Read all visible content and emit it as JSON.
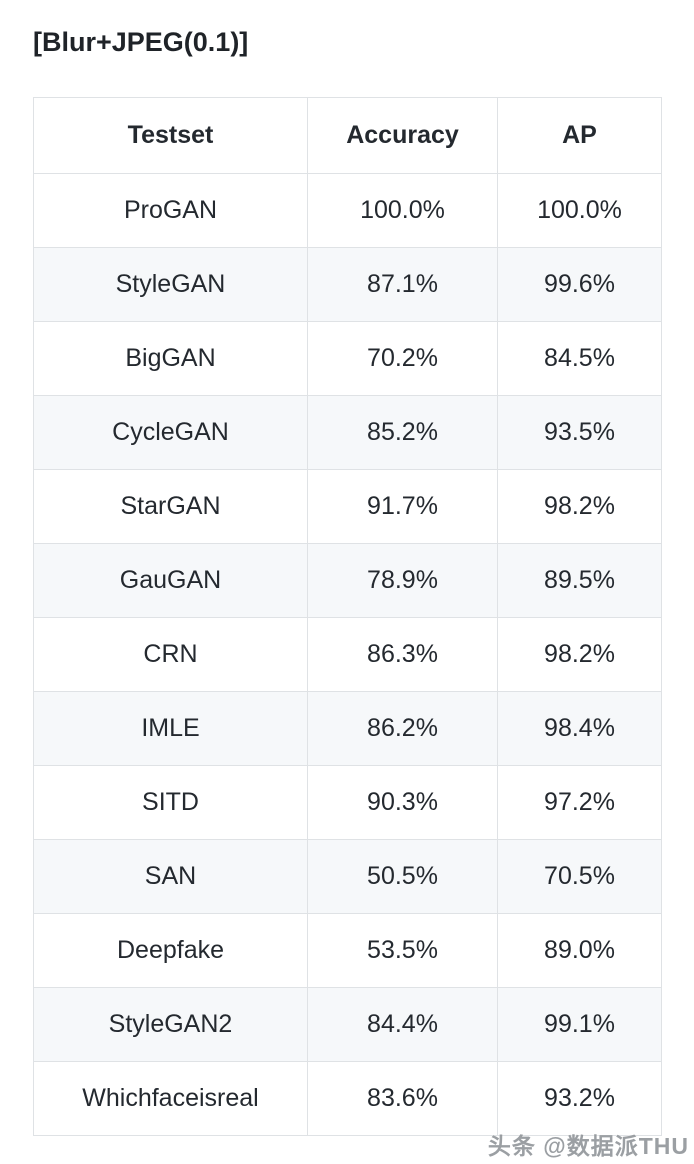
{
  "page": {
    "title": "[Blur+JPEG(0.1)]",
    "watermark": "头条 @数据派THU"
  },
  "colors": {
    "text": "#24292f",
    "border": "#dfe2e5",
    "alt_row_bg": "#f6f8fa",
    "watermark_gray": "#8a8e93"
  },
  "table": {
    "headers": [
      "Testset",
      "Accuracy",
      "AP"
    ],
    "rows": [
      {
        "testset": "ProGAN",
        "accuracy": "100.0%",
        "ap": "100.0%"
      },
      {
        "testset": "StyleGAN",
        "accuracy": "87.1%",
        "ap": "99.6%"
      },
      {
        "testset": "BigGAN",
        "accuracy": "70.2%",
        "ap": "84.5%"
      },
      {
        "testset": "CycleGAN",
        "accuracy": "85.2%",
        "ap": "93.5%"
      },
      {
        "testset": "StarGAN",
        "accuracy": "91.7%",
        "ap": "98.2%"
      },
      {
        "testset": "GauGAN",
        "accuracy": "78.9%",
        "ap": "89.5%"
      },
      {
        "testset": "CRN",
        "accuracy": "86.3%",
        "ap": "98.2%"
      },
      {
        "testset": "IMLE",
        "accuracy": "86.2%",
        "ap": "98.4%"
      },
      {
        "testset": "SITD",
        "accuracy": "90.3%",
        "ap": "97.2%"
      },
      {
        "testset": "SAN",
        "accuracy": "50.5%",
        "ap": "70.5%"
      },
      {
        "testset": "Deepfake",
        "accuracy": "53.5%",
        "ap": "89.0%"
      },
      {
        "testset": "StyleGAN2",
        "accuracy": "84.4%",
        "ap": "99.1%"
      },
      {
        "testset": "Whichfaceisreal",
        "accuracy": "83.6%",
        "ap": "93.2%"
      }
    ]
  }
}
